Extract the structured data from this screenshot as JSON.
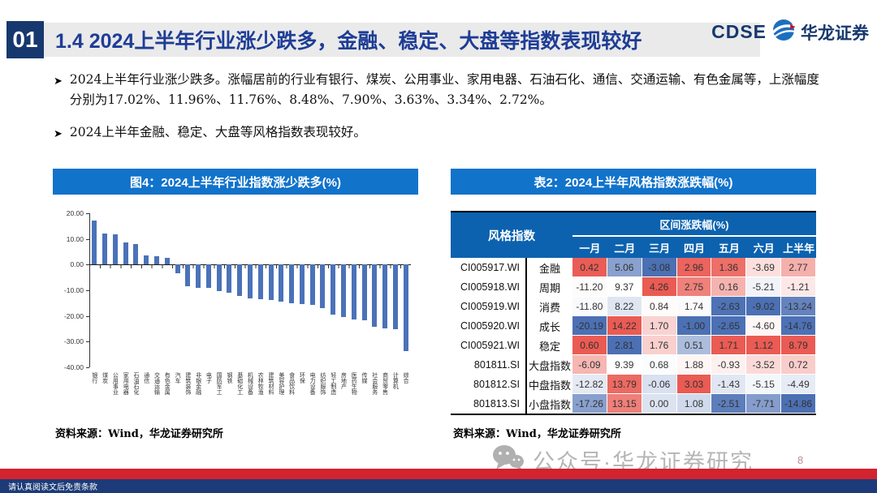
{
  "header": {
    "section_no": "01",
    "title": "1.4 2024上半年行业涨少跌多，金融、稳定、大盘等指数表现较好",
    "logo_text": "CDSE",
    "logo_name": "华龙证券"
  },
  "bullets": [
    "2024上半年行业涨少跌多。涨幅居前的行业有银行、煤炭、公用事业、家用电器、石油石化、通信、交通运输、有色金属等，上涨幅度分别为17.02%、11.96%、11.76%、8.48%、7.90%、3.63%、3.34%、2.72%。",
    "2024上半年金融、稳定、大盘等风格指数表现较好。"
  ],
  "left_panel": {
    "source": "资料来源：Wind，华龙证券研究所"
  },
  "right_panel": {
    "source": "资料来源：Wind，华龙证券研究所"
  },
  "chart_data": [
    {
      "type": "bar",
      "title": "图4：2024上半年行业指数涨少跌多(%)",
      "categories": [
        "银行",
        "煤炭",
        "公用事业",
        "家用电器",
        "石油石化",
        "通信",
        "交通运输",
        "有色金属",
        "汽车",
        "建筑装饰",
        "非银金融",
        "电子",
        "国防军工",
        "钢铁",
        "基础化工",
        "机械设备",
        "农林牧渔",
        "建筑材料",
        "美容护理",
        "食品饮料",
        "环保",
        "电力设备",
        "纺织服饰",
        "轻工制造",
        "房地产",
        "医药生物",
        "传媒",
        "社会服务",
        "商贸零售",
        "计算机",
        "综合"
      ],
      "values": [
        17.02,
        11.96,
        11.76,
        8.48,
        7.9,
        3.63,
        3.34,
        2.72,
        -3.5,
        -8.4,
        -8.9,
        -9.2,
        -10.2,
        -11.0,
        -12.1,
        -13.3,
        -13.6,
        -13.9,
        -14.4,
        -14.9,
        -15.4,
        -15.7,
        -16.8,
        -19.4,
        -20.5,
        -21.3,
        -21.7,
        -24.2,
        -24.7,
        -25.2,
        -33.8
      ],
      "xlabel": "",
      "ylabel": "",
      "ylim": [
        -40,
        20
      ],
      "yticks": [
        20,
        10,
        0,
        -10,
        -20,
        -30,
        -40
      ],
      "grid": false,
      "legend": "none",
      "bar_color": "#4B72B8"
    },
    {
      "type": "heatmap",
      "title": "表2：2024上半年风格指数涨跌幅(%)",
      "row_header": "风格指数",
      "col_group": "区间涨跌幅(%)",
      "columns": [
        "一月",
        "二月",
        "三月",
        "四月",
        "五月",
        "六月",
        "上半年"
      ],
      "rows": [
        {
          "code": "CI005917.WI",
          "name": "金融",
          "values": [
            0.42,
            5.06,
            -3.08,
            2.96,
            1.36,
            -3.69,
            2.77
          ]
        },
        {
          "code": "CI005918.WI",
          "name": "周期",
          "values": [
            -11.2,
            9.37,
            4.26,
            2.75,
            0.16,
            -5.21,
            -1.21
          ]
        },
        {
          "code": "CI005919.WI",
          "name": "消费",
          "values": [
            -11.8,
            8.22,
            0.84,
            1.74,
            -2.63,
            -9.02,
            -13.24
          ]
        },
        {
          "code": "CI005920.WI",
          "name": "成长",
          "values": [
            -20.19,
            14.22,
            1.7,
            -1.0,
            -2.65,
            -4.6,
            -14.76
          ]
        },
        {
          "code": "CI005921.WI",
          "name": "稳定",
          "values": [
            0.6,
            2.81,
            1.76,
            0.51,
            1.71,
            1.12,
            8.79
          ]
        },
        {
          "code": "801811.SI",
          "name": "大盘指数",
          "values": [
            -6.09,
            9.39,
            0.68,
            1.88,
            -0.93,
            -3.52,
            0.72
          ]
        },
        {
          "code": "801812.SI",
          "name": "中盘指数",
          "values": [
            -12.82,
            13.79,
            -0.06,
            3.03,
            -1.43,
            -5.15,
            -4.49
          ]
        },
        {
          "code": "801813.SI",
          "name": "小盘指数",
          "values": [
            -17.26,
            13.15,
            0.0,
            1.08,
            -2.51,
            -7.71,
            -14.86
          ]
        }
      ],
      "color_scale": {
        "high": "#EA5B53",
        "mid": "#FFFFFF",
        "low": "#4C70B4",
        "normalize": "per-column-median"
      }
    }
  ],
  "footer": {
    "watermark": "公众号·华龙证券研究",
    "page_number": "8",
    "disclaimer": "请认真阅读文后免责条款"
  },
  "colors": {
    "panel_title_bg": "#1273CB",
    "table_header_bg": "#0C62AF",
    "title_navy": "#1E3D96",
    "section_box_navy": "#16386E",
    "footer_red": "#D2232E",
    "footer_navy": "#1C3B78",
    "watermark_gray": "#B5B5B5"
  }
}
